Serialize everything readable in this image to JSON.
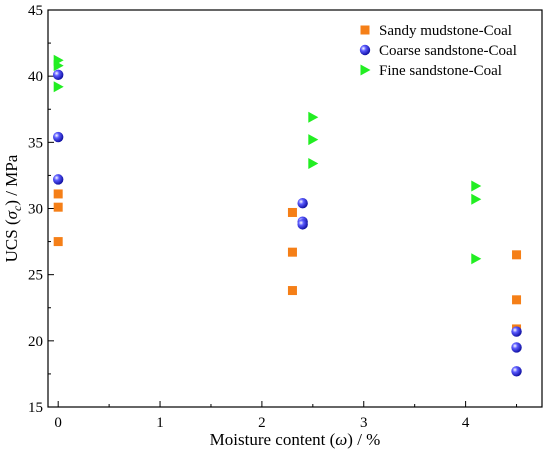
{
  "chart_data": {
    "type": "scatter",
    "title": "",
    "xlabel": {
      "prefix": "Moisture content (",
      "symbol": "ω",
      "suffix": ") / %"
    },
    "ylabel": {
      "prefix": "UCS (",
      "symbol": "σ",
      "sub": "c",
      "suffix": ") / MPa"
    },
    "xlim": [
      -0.1,
      4.75
    ],
    "ylim": [
      15,
      45
    ],
    "xticks": [
      0,
      1,
      2,
      3,
      4
    ],
    "yticks": [
      15,
      20,
      25,
      30,
      35,
      40,
      45
    ],
    "grid": false,
    "legend_position": "top-right",
    "series": [
      {
        "name": "Sandy mudstone-Coal",
        "marker": "square",
        "color": "#f57f17",
        "points": [
          [
            0,
            31.1
          ],
          [
            0,
            30.1
          ],
          [
            0,
            27.5
          ],
          [
            2.3,
            29.7
          ],
          [
            2.3,
            26.7
          ],
          [
            2.3,
            23.8
          ],
          [
            4.5,
            26.5
          ],
          [
            4.5,
            23.1
          ],
          [
            4.5,
            20.9
          ]
        ]
      },
      {
        "name": "Coarse sandstone-Coal",
        "marker": "sphere",
        "color": "#1212cc",
        "points": [
          [
            0,
            40.1
          ],
          [
            0,
            35.4
          ],
          [
            0,
            32.2
          ],
          [
            2.4,
            30.4
          ],
          [
            2.4,
            29.0
          ],
          [
            2.4,
            28.8
          ],
          [
            4.5,
            20.7
          ],
          [
            4.5,
            19.5
          ],
          [
            4.5,
            17.7
          ]
        ]
      },
      {
        "name": "Fine sandstone-Coal",
        "marker": "triangle-right",
        "color": "#22ee22",
        "points": [
          [
            0,
            41.2
          ],
          [
            0,
            40.8
          ],
          [
            0,
            39.2
          ],
          [
            2.5,
            36.9
          ],
          [
            2.5,
            35.2
          ],
          [
            2.5,
            33.4
          ],
          [
            4.1,
            31.7
          ],
          [
            4.1,
            30.7
          ],
          [
            4.1,
            26.2
          ]
        ]
      }
    ]
  }
}
